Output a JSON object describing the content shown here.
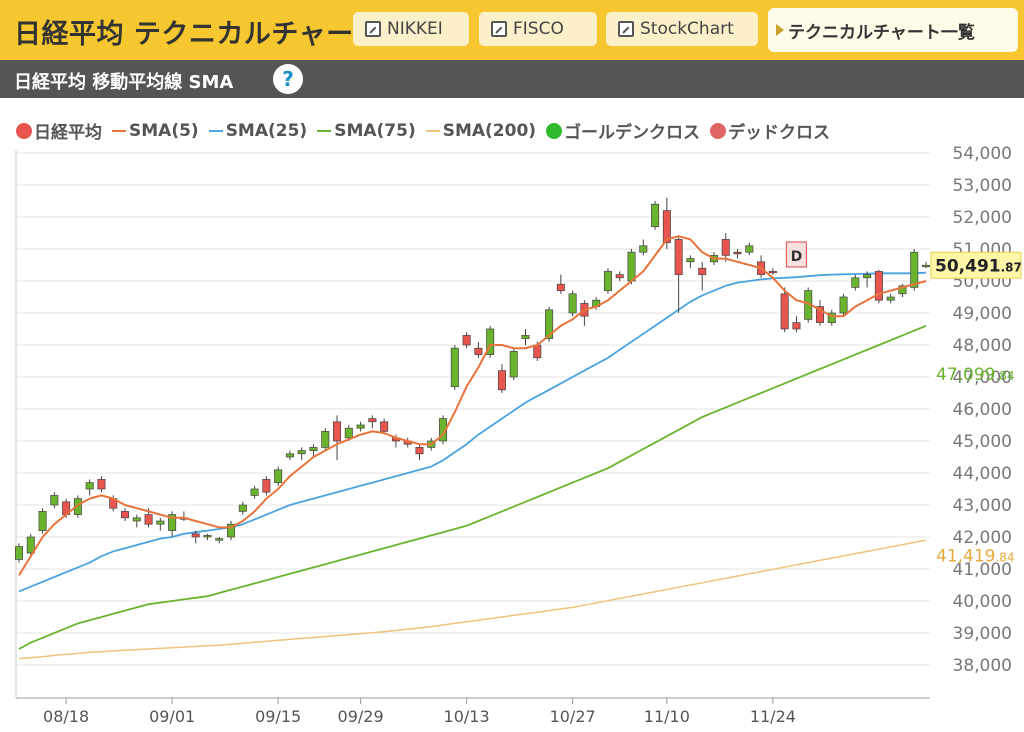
{
  "header": {
    "title": "日経平均 テクニカルチャート",
    "links": [
      {
        "label": "NIKKEI"
      },
      {
        "label": "FISCO"
      },
      {
        "label": "StockChart"
      }
    ],
    "list_label": "テクニカルチャート一覧"
  },
  "subheader": {
    "title": "日経平均 移動平均線 SMA",
    "help": "?"
  },
  "legend": [
    {
      "label": "日経平均",
      "kind": "dot",
      "color": "#e8554e"
    },
    {
      "label": "SMA(5)",
      "kind": "line",
      "color": "#e8743b"
    },
    {
      "label": "SMA(25)",
      "kind": "line",
      "color": "#4aa3df"
    },
    {
      "label": "SMA(75)",
      "kind": "line",
      "color": "#6ab42d"
    },
    {
      "label": "SMA(200)",
      "kind": "line",
      "color": "#f0c27a"
    },
    {
      "label": "ゴールデンクロス",
      "kind": "dot",
      "color": "#2dba2d"
    },
    {
      "label": "デッドクロス",
      "kind": "dot",
      "color": "#e06666"
    }
  ],
  "chart_data": {
    "type": "candlestick",
    "ylim": [
      37000,
      54500
    ],
    "yticks": [
      38000,
      39000,
      40000,
      41000,
      42000,
      43000,
      44000,
      45000,
      46000,
      47000,
      48000,
      49000,
      50000,
      51000,
      52000,
      53000,
      54000
    ],
    "ytick_labels": [
      "38,000",
      "39,000",
      "40,000",
      "41,000",
      "42,000",
      "43,000",
      "44,000",
      "45,000",
      "46,000",
      "47,000",
      "48,000",
      "49,000",
      "50,000",
      "51,000",
      "52,000",
      "53,000",
      "54,000"
    ],
    "xticks": [
      {
        "label": "08/18",
        "index": 4
      },
      {
        "label": "09/01",
        "index": 13
      },
      {
        "label": "09/15",
        "index": 22
      },
      {
        "label": "09/29",
        "index": 29
      },
      {
        "label": "10/13",
        "index": 38
      },
      {
        "label": "10/27",
        "index": 47
      },
      {
        "label": "11/10",
        "index": 55
      },
      {
        "label": "11/24",
        "index": 64
      }
    ],
    "up_color": "#6ab42d",
    "down_color": "#e8554e",
    "candles": [
      [
        41300,
        41800,
        41200,
        41700
      ],
      [
        41500,
        42100,
        41400,
        42000
      ],
      [
        42200,
        42900,
        42100,
        42800
      ],
      [
        43000,
        43400,
        42900,
        43300
      ],
      [
        43100,
        43200,
        42600,
        42700
      ],
      [
        42700,
        43300,
        42600,
        43200
      ],
      [
        43500,
        43800,
        43300,
        43700
      ],
      [
        43800,
        43900,
        43400,
        43500
      ],
      [
        43200,
        43300,
        42800,
        42900
      ],
      [
        42800,
        42900,
        42500,
        42600
      ],
      [
        42500,
        42700,
        42300,
        42600
      ],
      [
        42700,
        42900,
        42300,
        42400
      ],
      [
        42400,
        42600,
        42200,
        42500
      ],
      [
        42200,
        42800,
        42000,
        42700
      ],
      [
        42600,
        42800,
        42500,
        42600
      ],
      [
        42100,
        42200,
        41800,
        42000
      ],
      [
        42000,
        42100,
        41900,
        42050
      ],
      [
        41900,
        42000,
        41800,
        41950
      ],
      [
        42000,
        42500,
        41900,
        42400
      ],
      [
        42800,
        43100,
        42700,
        43000
      ],
      [
        43300,
        43600,
        43200,
        43500
      ],
      [
        43800,
        43900,
        43300,
        43400
      ],
      [
        43700,
        44200,
        43600,
        44100
      ],
      [
        44500,
        44700,
        44400,
        44600
      ],
      [
        44600,
        44800,
        44400,
        44700
      ],
      [
        44700,
        44900,
        44500,
        44800
      ],
      [
        44800,
        45400,
        44700,
        45300
      ],
      [
        45600,
        45800,
        44400,
        45000
      ],
      [
        45100,
        45500,
        45000,
        45400
      ],
      [
        45400,
        45600,
        45300,
        45500
      ],
      [
        45700,
        45800,
        45400,
        45600
      ],
      [
        45600,
        45700,
        45200,
        45300
      ],
      [
        45100,
        45200,
        44800,
        45000
      ],
      [
        45000,
        45100,
        44800,
        44900
      ],
      [
        44800,
        44900,
        44400,
        44600
      ],
      [
        44800,
        45100,
        44700,
        45000
      ],
      [
        45000,
        45800,
        44900,
        45700
      ],
      [
        46700,
        48000,
        46600,
        47900
      ],
      [
        48300,
        48400,
        47900,
        48000
      ],
      [
        47900,
        48100,
        47600,
        47700
      ],
      [
        47700,
        48600,
        47600,
        48500
      ],
      [
        47200,
        47400,
        46500,
        46600
      ],
      [
        47000,
        47900,
        46900,
        47800
      ],
      [
        48200,
        48500,
        48000,
        48300
      ],
      [
        48000,
        48100,
        47500,
        47600
      ],
      [
        48200,
        49200,
        48100,
        49100
      ],
      [
        49900,
        50200,
        49600,
        49700
      ],
      [
        49000,
        49700,
        48900,
        49600
      ],
      [
        49300,
        49400,
        48600,
        48900
      ],
      [
        49200,
        49500,
        49100,
        49400
      ],
      [
        49700,
        50400,
        49600,
        50300
      ],
      [
        50200,
        50300,
        50000,
        50100
      ],
      [
        50000,
        51000,
        49900,
        50900
      ],
      [
        50900,
        51300,
        50800,
        51100
      ],
      [
        51700,
        52500,
        51600,
        52400
      ],
      [
        52200,
        52600,
        51000,
        51200
      ],
      [
        51300,
        51400,
        49000,
        50200
      ],
      [
        50600,
        50800,
        50400,
        50700
      ],
      [
        50400,
        50600,
        49700,
        50200
      ],
      [
        50600,
        50900,
        50500,
        50800
      ],
      [
        51300,
        51500,
        50600,
        50800
      ],
      [
        50900,
        51000,
        50700,
        50850
      ],
      [
        50900,
        51200,
        50800,
        51100
      ],
      [
        50600,
        50800,
        50100,
        50200
      ],
      [
        50300,
        50400,
        50200,
        50280
      ],
      [
        49600,
        49800,
        48400,
        48500
      ],
      [
        48700,
        48900,
        48400,
        48500
      ],
      [
        48800,
        49800,
        48700,
        49700
      ],
      [
        49200,
        49400,
        48600,
        48700
      ],
      [
        48700,
        49100,
        48600,
        49000
      ],
      [
        49000,
        49600,
        48900,
        49500
      ],
      [
        49800,
        50200,
        49700,
        50100
      ],
      [
        50100,
        50300,
        49800,
        50200
      ],
      [
        50300,
        50350,
        49300,
        49400
      ],
      [
        49400,
        49600,
        49300,
        49500
      ],
      [
        49600,
        49900,
        49500,
        49850
      ],
      [
        49800,
        51000,
        49700,
        50900
      ],
      [
        50480,
        50600,
        50400,
        50492
      ]
    ],
    "sma5": [
      40800,
      41400,
      42000,
      42400,
      42700,
      43000,
      43200,
      43300,
      43200,
      43000,
      42900,
      42800,
      42700,
      42600,
      42600,
      42500,
      42400,
      42300,
      42300,
      42500,
      42800,
      43200,
      43500,
      43900,
      44200,
      44500,
      44700,
      44900,
      45050,
      45200,
      45300,
      45250,
      45100,
      45000,
      44900,
      44900,
      45200,
      45900,
      46700,
      47300,
      48000,
      48000,
      47900,
      47900,
      48000,
      48300,
      48600,
      48800,
      49100,
      49200,
      49400,
      49700,
      50000,
      50300,
      50800,
      51300,
      51400,
      51300,
      50900,
      50700,
      50700,
      50600,
      50500,
      50400,
      50100,
      49700,
      49400,
      49300,
      49100,
      48900,
      48900,
      49200,
      49400,
      49600,
      49700,
      49800,
      49900,
      50000
    ],
    "sma25": [
      40300,
      40450,
      40600,
      40750,
      40900,
      41050,
      41200,
      41400,
      41550,
      41650,
      41750,
      41850,
      41950,
      42000,
      42100,
      42150,
      42200,
      42250,
      42300,
      42400,
      42550,
      42700,
      42850,
      43000,
      43100,
      43200,
      43300,
      43400,
      43500,
      43600,
      43700,
      43800,
      43900,
      44000,
      44100,
      44200,
      44400,
      44650,
      44900,
      45200,
      45450,
      45700,
      45950,
      46200,
      46400,
      46600,
      46800,
      47000,
      47200,
      47400,
      47600,
      47850,
      48100,
      48350,
      48600,
      48850,
      49100,
      49350,
      49550,
      49700,
      49850,
      49950,
      50000,
      50050,
      50080,
      50100,
      50120,
      50150,
      50180,
      50200,
      50210,
      50220,
      50230,
      50240,
      50240,
      50240,
      50240,
      50260
    ],
    "sma75": [
      38500,
      38700,
      38850,
      39000,
      39150,
      39300,
      39400,
      39500,
      39600,
      39700,
      39800,
      39900,
      39950,
      40000,
      40050,
      40100,
      40150,
      40250,
      40350,
      40450,
      40550,
      40650,
      40750,
      40850,
      40950,
      41050,
      41150,
      41250,
      41350,
      41450,
      41550,
      41650,
      41750,
      41850,
      41950,
      42050,
      42150,
      42250,
      42350,
      42500,
      42650,
      42800,
      42950,
      43100,
      43250,
      43400,
      43550,
      43700,
      43850,
      44000,
      44150,
      44350,
      44550,
      44750,
      44950,
      45150,
      45350,
      45550,
      45750,
      45900,
      46050,
      46200,
      46350,
      46500,
      46650,
      46800,
      46950,
      47100,
      47250,
      47400,
      47550,
      47700,
      47850,
      48000,
      48150,
      48300,
      48450,
      48600
    ],
    "sma200": [
      38200,
      38230,
      38260,
      38300,
      38330,
      38360,
      38400,
      38420,
      38440,
      38460,
      38480,
      38500,
      38520,
      38540,
      38560,
      38580,
      38600,
      38620,
      38650,
      38680,
      38710,
      38740,
      38770,
      38800,
      38830,
      38860,
      38890,
      38920,
      38950,
      38980,
      39010,
      39040,
      39080,
      39120,
      39160,
      39200,
      39250,
      39300,
      39350,
      39400,
      39450,
      39500,
      39550,
      39600,
      39650,
      39700,
      39750,
      39800,
      39870,
      39940,
      40010,
      40080,
      40150,
      40220,
      40290,
      40360,
      40430,
      40500,
      40570,
      40640,
      40710,
      40780,
      40850,
      40920,
      40990,
      41060,
      41130,
      41200,
      41270,
      41340,
      41410,
      41480,
      41550,
      41620,
      41690,
      41760,
      41830,
      41900
    ],
    "dead_cross": {
      "label": "D",
      "index": 66
    },
    "last_price": {
      "main": "50,491",
      "decimal": ".87"
    },
    "right_labels": [
      {
        "main": "47,099",
        "decimal": ".84",
        "value": 47099.84,
        "color": "#6ab42d"
      },
      {
        "main": "41,419",
        "decimal": ".84",
        "value": 41419.84,
        "color": "#e8a93b"
      }
    ]
  }
}
